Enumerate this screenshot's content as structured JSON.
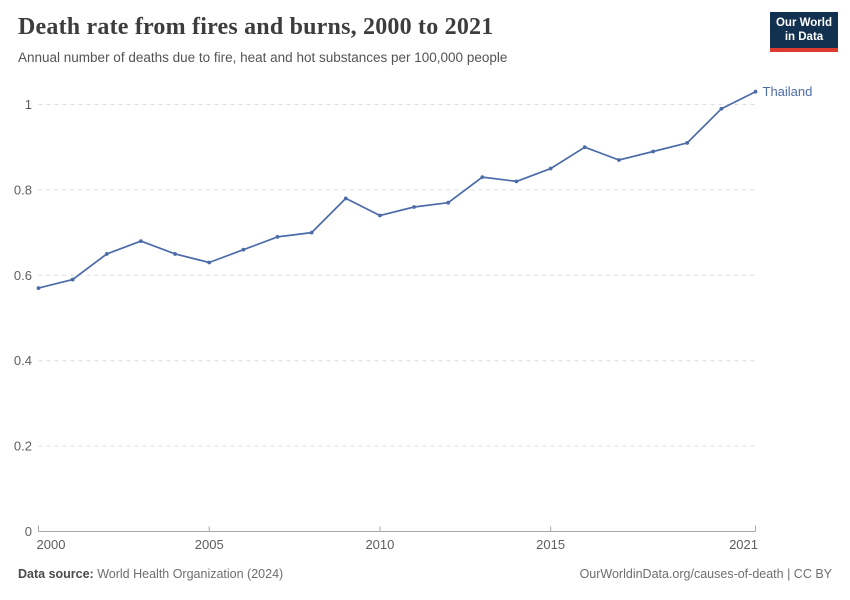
{
  "header": {
    "title": "Death rate from fires and burns, 2000 to 2021",
    "subtitle": "Annual number of deaths due to fire, heat and hot substances per 100,000 people"
  },
  "logo": {
    "line1": "Our World",
    "line2": "in Data",
    "bg_color": "#12304f",
    "accent_color": "#dc3a2f"
  },
  "chart_data": {
    "type": "line",
    "title": "Death rate from fires and burns, 2000 to 2021",
    "subtitle": "Annual number of deaths due to fire, heat and hot substances per 100,000 people",
    "x": [
      2000,
      2001,
      2002,
      2003,
      2004,
      2005,
      2006,
      2007,
      2008,
      2009,
      2010,
      2011,
      2012,
      2013,
      2014,
      2015,
      2016,
      2017,
      2018,
      2019,
      2020,
      2021
    ],
    "series": [
      {
        "name": "Thailand",
        "color": "#4C6BA9",
        "values": [
          0.57,
          0.59,
          0.65,
          0.68,
          0.65,
          0.63,
          0.66,
          0.69,
          0.7,
          0.78,
          0.74,
          0.76,
          0.77,
          0.83,
          0.82,
          0.85,
          0.9,
          0.87,
          0.89,
          0.91,
          0.99,
          1.03
        ]
      }
    ],
    "xlabel": "",
    "ylabel": "",
    "xlim": [
      2000,
      2021
    ],
    "ylim": [
      0,
      1.05
    ],
    "xticks": [
      2000,
      2005,
      2010,
      2015,
      2021
    ],
    "yticks": [
      0,
      0.2,
      0.4,
      0.6,
      0.8,
      1
    ],
    "ytick_labels": [
      "0",
      "0.2",
      "0.4",
      "0.6",
      "0.8",
      "1"
    ],
    "grid": "horizontal-dashed",
    "legend": "end-of-line-label",
    "colors": {
      "line": "#4C6BA9",
      "grid": "#dddddd",
      "axis": "#a8a8a8",
      "tick_text": "#5e5e5e"
    }
  },
  "footer": {
    "source_label": "Data source:",
    "source": "World Health Organization (2024)",
    "link": "OurWorldinData.org/causes-of-death | CC BY"
  }
}
